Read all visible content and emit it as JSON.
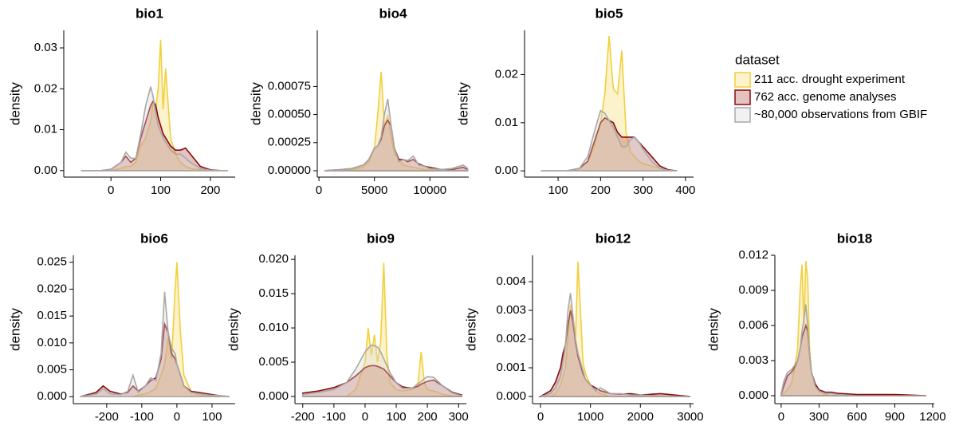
{
  "legend": {
    "title": "dataset",
    "items": [
      {
        "name": "211 acc. drought experiment",
        "color": "#f2cf3a",
        "fill": "#f7dc6f"
      },
      {
        "name": "762 acc. genome analyses",
        "color": "#8b0a0a",
        "fill": "#b5504b"
      },
      {
        "name": "~80,000 observations from GBIF",
        "color": "#a8a8a8",
        "fill": "#d6d6d6"
      }
    ]
  },
  "chart_data": [
    {
      "type": "area",
      "title": "bio1",
      "ylabel": "density",
      "xlim": [
        -95,
        250
      ],
      "ylim": [
        -0.0016,
        0.0343
      ],
      "xticks": [
        0,
        100,
        200
      ],
      "yticks": [
        {
          "value": 0,
          "label": "0.00"
        },
        0.01,
        0.02,
        0.03
      ],
      "x": [
        -60,
        -20,
        0,
        20,
        30,
        40,
        50,
        60,
        70,
        80,
        85,
        90,
        95,
        100,
        105,
        110,
        120,
        130,
        140,
        150,
        160,
        180,
        200,
        220,
        235
      ],
      "series": [
        {
          "values": [
            0,
            0,
            0,
            0.0005,
            0.001,
            0.001,
            0.002,
            0.006,
            0.008,
            0.012,
            0.017,
            0.015,
            0.02,
            0.032,
            0.015,
            0.025,
            0.008,
            0.004,
            0.002,
            0.001,
            0.0005,
            0.0002,
            0,
            0,
            0
          ]
        },
        {
          "values": [
            0,
            0,
            0.0003,
            0.002,
            0.0035,
            0.002,
            0.003,
            0.008,
            0.012,
            0.016,
            0.017,
            0.016,
            0.013,
            0.011,
            0.009,
            0.008,
            0.006,
            0.005,
            0.005,
            0.0055,
            0.004,
            0.001,
            0.0002,
            0,
            0
          ]
        },
        {
          "values": [
            0,
            0,
            0.0003,
            0.002,
            0.0045,
            0.003,
            0.003,
            0.009,
            0.016,
            0.0205,
            0.018,
            0.014,
            0.011,
            0.0095,
            0.008,
            0.007,
            0.005,
            0.004,
            0.004,
            0.003,
            0.002,
            0.0005,
            0.0001,
            0,
            0
          ]
        }
      ]
    },
    {
      "type": "area",
      "title": "bio4",
      "ylabel": "density",
      "xlim": [
        -150,
        13500
      ],
      "ylim": [
        -5.7e-05,
        0.00125
      ],
      "xticks": [
        0,
        5000,
        10000
      ],
      "yticks": [
        {
          "value": 0,
          "label": "0.00000"
        },
        0.00025,
        {
          "value": 0.0005,
          "label": "0.00050"
        },
        0.00075
      ],
      "x": [
        500,
        2000,
        3000,
        4000,
        4500,
        5000,
        5300,
        5600,
        5900,
        6200,
        6500,
        6800,
        7200,
        7600,
        8000,
        8500,
        9000,
        9500,
        10000,
        11000,
        12000,
        13000,
        13400
      ],
      "series": [
        {
          "values": [
            0,
            0,
            1e-05,
            3e-05,
            8e-05,
            0.0002,
            0.0005,
            0.00088,
            0.0004,
            0.0005,
            0.0003,
            0.00015,
            0.0001,
            5e-05,
            4e-05,
            3e-05,
            2e-05,
            1e-05,
            1e-05,
            0,
            0,
            0,
            0
          ]
        },
        {
          "values": [
            0,
            1e-05,
            2e-05,
            5e-05,
            0.0001,
            0.0002,
            0.00022,
            0.00028,
            0.0004,
            0.00045,
            0.0004,
            0.0002,
            0.0001,
            0.0001,
            8e-05,
            0.0001,
            6e-05,
            4e-05,
            3e-05,
            1e-05,
            1e-05,
            3e-05,
            1e-05
          ]
        },
        {
          "values": [
            0,
            1e-05,
            2e-05,
            5e-05,
            0.0001,
            0.0002,
            0.00022,
            0.0003,
            0.0005,
            0.00064,
            0.0004,
            0.0002,
            8e-05,
            0.0001,
            9e-05,
            0.00013,
            5e-05,
            4e-05,
            2e-05,
            1e-05,
            2e-05,
            5e-05,
            2e-05
          ]
        }
      ]
    },
    {
      "type": "area",
      "title": "bio5",
      "ylabel": "density",
      "xlim": [
        21,
        419
      ],
      "ylim": [
        -0.0013,
        0.0292
      ],
      "xticks": [
        100,
        200,
        300,
        400
      ],
      "yticks": [
        {
          "value": 0,
          "label": "0.00"
        },
        0.01,
        0.02
      ],
      "x": [
        60,
        120,
        150,
        170,
        185,
        200,
        210,
        220,
        230,
        240,
        250,
        260,
        270,
        280,
        290,
        300,
        320,
        340,
        360,
        380
      ],
      "series": [
        {
          "values": [
            0,
            0,
            0.0005,
            0.002,
            0.005,
            0.01,
            0.016,
            0.028,
            0.017,
            0.016,
            0.025,
            0.008,
            0.004,
            0.003,
            0.002,
            0.0015,
            0.001,
            0.0005,
            0.0002,
            0
          ]
        },
        {
          "values": [
            0,
            0,
            0.0005,
            0.002,
            0.006,
            0.01,
            0.011,
            0.0105,
            0.01,
            0.008,
            0.007,
            0.007,
            0.007,
            0.007,
            0.006,
            0.005,
            0.003,
            0.001,
            0.0002,
            0
          ]
        },
        {
          "values": [
            0,
            0,
            0.0005,
            0.003,
            0.008,
            0.0125,
            0.012,
            0.0105,
            0.009,
            0.007,
            0.005,
            0.005,
            0.0065,
            0.007,
            0.006,
            0.0045,
            0.002,
            0.0005,
            0.0001,
            0
          ]
        }
      ]
    },
    {
      "type": "area",
      "title": "bio6",
      "ylabel": "density",
      "xlim": [
        -295,
        166
      ],
      "ylim": [
        -0.0013,
        0.0263
      ],
      "xticks": [
        -200,
        -100,
        0,
        100
      ],
      "yticks": [
        {
          "value": 0,
          "label": "0.000"
        },
        0.005,
        {
          "value": 0.01,
          "label": "0.010"
        },
        0.015,
        {
          "value": 0.02,
          "label": "0.020"
        },
        0.025
      ],
      "x": [
        -275,
        -230,
        -210,
        -190,
        -160,
        -140,
        -125,
        -110,
        -90,
        -75,
        -60,
        -45,
        -35,
        -25,
        -15,
        -5,
        0,
        10,
        20,
        40,
        60,
        90,
        120,
        150
      ],
      "series": [
        {
          "values": [
            0,
            0,
            0,
            0,
            0,
            0,
            0,
            0.0003,
            0.0005,
            0.001,
            0.0015,
            0.004,
            0.006,
            0.011,
            0.007,
            0.02,
            0.025,
            0.012,
            0.004,
            0.001,
            0.0003,
            0.0001,
            0,
            0
          ]
        },
        {
          "values": [
            0,
            0.0008,
            0.002,
            0.001,
            0.0005,
            0.0008,
            0.002,
            0.001,
            0.002,
            0.003,
            0.0035,
            0.007,
            0.0135,
            0.012,
            0.008,
            0.007,
            0.006,
            0.004,
            0.002,
            0.001,
            0.0008,
            0.0005,
            0.0002,
            0
          ]
        },
        {
          "values": [
            0,
            0.0005,
            0.0015,
            0.0005,
            0.0004,
            0.001,
            0.004,
            0.0008,
            0.002,
            0.0035,
            0.003,
            0.008,
            0.0195,
            0.012,
            0.009,
            0.008,
            0.006,
            0.004,
            0.002,
            0.0008,
            0.0006,
            0.0003,
            0.0002,
            0
          ]
        }
      ]
    },
    {
      "type": "area",
      "title": "bio9",
      "ylabel": "density",
      "xlim": [
        -225,
        325
      ],
      "ylim": [
        -0.00105,
        0.0206
      ],
      "xticks": [
        -200,
        -100,
        0,
        100,
        200,
        300
      ],
      "yticks": [
        {
          "value": 0,
          "label": "0.000"
        },
        0.005,
        {
          "value": 0.01,
          "label": "0.010"
        },
        0.015,
        {
          "value": 0.02,
          "label": "0.020"
        }
      ],
      "x": [
        -200,
        -150,
        -100,
        -60,
        -30,
        0,
        10,
        20,
        30,
        40,
        50,
        60,
        70,
        80,
        100,
        120,
        150,
        170,
        180,
        190,
        200,
        220,
        250,
        280,
        310
      ],
      "series": [
        {
          "values": [
            0,
            0,
            0,
            0,
            0.001,
            0.005,
            0.01,
            0.006,
            0.009,
            0.005,
            0.008,
            0.0195,
            0.006,
            0.002,
            0.001,
            0.0008,
            0.001,
            0.002,
            0.0065,
            0.002,
            0.001,
            0.0008,
            0.0003,
            0.0001,
            0
          ]
        },
        {
          "values": [
            0.0005,
            0.0008,
            0.0013,
            0.002,
            0.003,
            0.0042,
            0.0044,
            0.0045,
            0.0045,
            0.0044,
            0.0042,
            0.004,
            0.0035,
            0.003,
            0.002,
            0.0014,
            0.0012,
            0.0015,
            0.0018,
            0.002,
            0.0022,
            0.0024,
            0.0015,
            0.0006,
            0.0002
          ]
        },
        {
          "values": [
            0.0003,
            0.0006,
            0.001,
            0.002,
            0.004,
            0.0065,
            0.007,
            0.0075,
            0.0074,
            0.0072,
            0.0065,
            0.0055,
            0.0045,
            0.0035,
            0.002,
            0.0012,
            0.0012,
            0.0018,
            0.0022,
            0.0026,
            0.0029,
            0.0028,
            0.0015,
            0.0005,
            0.0001
          ]
        }
      ]
    },
    {
      "type": "area",
      "title": "bio12",
      "ylabel": "density",
      "xlim": [
        -160,
        3065
      ],
      "ylim": [
        -0.00025,
        0.00492
      ],
      "xticks": [
        0,
        1000,
        2000,
        3000
      ],
      "yticks": [
        {
          "value": 0,
          "label": "0.000"
        },
        0.001,
        0.002,
        0.003,
        0.004
      ],
      "x": [
        0,
        200,
        300,
        400,
        450,
        500,
        550,
        600,
        650,
        700,
        750,
        800,
        850,
        900,
        1000,
        1100,
        1200,
        1400,
        1600,
        1800,
        2000,
        2400,
        3000
      ],
      "series": [
        {
          "values": [
            0,
            0,
            0.0001,
            0.0004,
            0.0007,
            0.001,
            0.002,
            0.0032,
            0.0025,
            0.002,
            0.0047,
            0.003,
            0.0012,
            0.0008,
            0.0004,
            0.0002,
            0.0001,
            0,
            0,
            0,
            0,
            0,
            0
          ]
        },
        {
          "values": [
            0,
            0.0002,
            0.0005,
            0.001,
            0.0015,
            0.0018,
            0.0025,
            0.003,
            0.0026,
            0.0019,
            0.0014,
            0.0011,
            0.0008,
            0.0006,
            0.0004,
            0.0003,
            0.0002,
            0.0001,
            8e-05,
            0.0001,
            5e-05,
            0.0001,
            0
          ]
        },
        {
          "values": [
            0,
            0.0001,
            0.0003,
            0.0007,
            0.0012,
            0.0018,
            0.003,
            0.0036,
            0.0028,
            0.002,
            0.0015,
            0.0012,
            0.0009,
            0.0006,
            0.0004,
            0.0002,
            0.0003,
            0.0001,
            0.0001,
            5e-05,
            5e-05,
            2e-05,
            0
          ]
        }
      ]
    },
    {
      "type": "area",
      "title": "bio18",
      "ylabel": "density",
      "xlim": [
        -50,
        1213
      ],
      "ylim": [
        -0.00068,
        0.012
      ],
      "xticks": [
        0,
        300,
        600,
        900,
        1200
      ],
      "yticks": [
        {
          "value": 0,
          "label": "0.000"
        },
        0.003,
        0.006,
        0.009,
        0.012
      ],
      "x": [
        0,
        20,
        50,
        80,
        100,
        130,
        150,
        165,
        180,
        195,
        210,
        225,
        240,
        270,
        300,
        350,
        400,
        450,
        600,
        900,
        1150
      ],
      "series": [
        {
          "values": [
            0,
            0.0002,
            0.0005,
            0.001,
            0.002,
            0.004,
            0.009,
            0.0112,
            0.006,
            0.0115,
            0.01,
            0.004,
            0.002,
            0.0008,
            0.0004,
            0.0001,
            0,
            0,
            0,
            0,
            0
          ]
        },
        {
          "values": [
            0.0001,
            0.0008,
            0.0017,
            0.002,
            0.0023,
            0.003,
            0.004,
            0.005,
            0.0055,
            0.006,
            0.0055,
            0.0035,
            0.002,
            0.001,
            0.0005,
            0.0003,
            0.0003,
            0.0002,
            0.0001,
            0.0001,
            0
          ]
        },
        {
          "values": [
            0.0002,
            0.0012,
            0.002,
            0.0022,
            0.0025,
            0.003,
            0.004,
            0.0055,
            0.0065,
            0.0078,
            0.006,
            0.0035,
            0.002,
            0.0008,
            0.0004,
            0.0002,
            0.0002,
            0.0001,
            0,
            0,
            0
          ]
        }
      ]
    }
  ]
}
